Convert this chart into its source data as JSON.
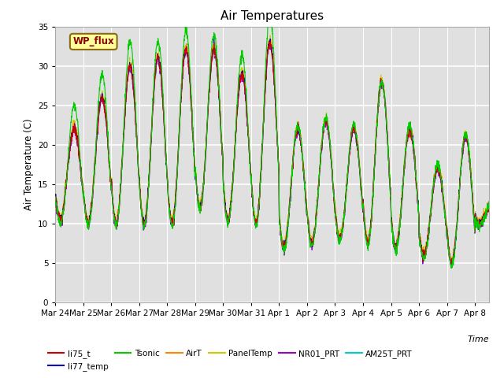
{
  "title": "Air Temperatures",
  "xlabel": "Time",
  "ylabel": "Air Temperature (C)",
  "ylim": [
    0,
    35
  ],
  "background_color": "#e0e0e0",
  "plot_bg_color": "#e0e0e0",
  "grid_color": "white",
  "series_colors": {
    "li75_t": "#cc0000",
    "li77_temp": "#0000cc",
    "Tsonic": "#00cc00",
    "AirT": "#ff8800",
    "PanelTemp": "#cccc00",
    "NR01_PRT": "#9900cc",
    "AM25T_PRT": "#00cccc"
  },
  "legend_label": "WP_flux",
  "x_ticklabels": [
    "Mar 24",
    "Mar 25",
    "Mar 26",
    "Mar 27",
    "Mar 28",
    "Mar 29",
    "Mar 30",
    "Mar 31",
    "Apr 1",
    "Apr 2",
    "Apr 3",
    "Apr 4",
    "Apr 5",
    "Apr 6",
    "Apr 7",
    "Apr 8"
  ],
  "n_points": 2000
}
